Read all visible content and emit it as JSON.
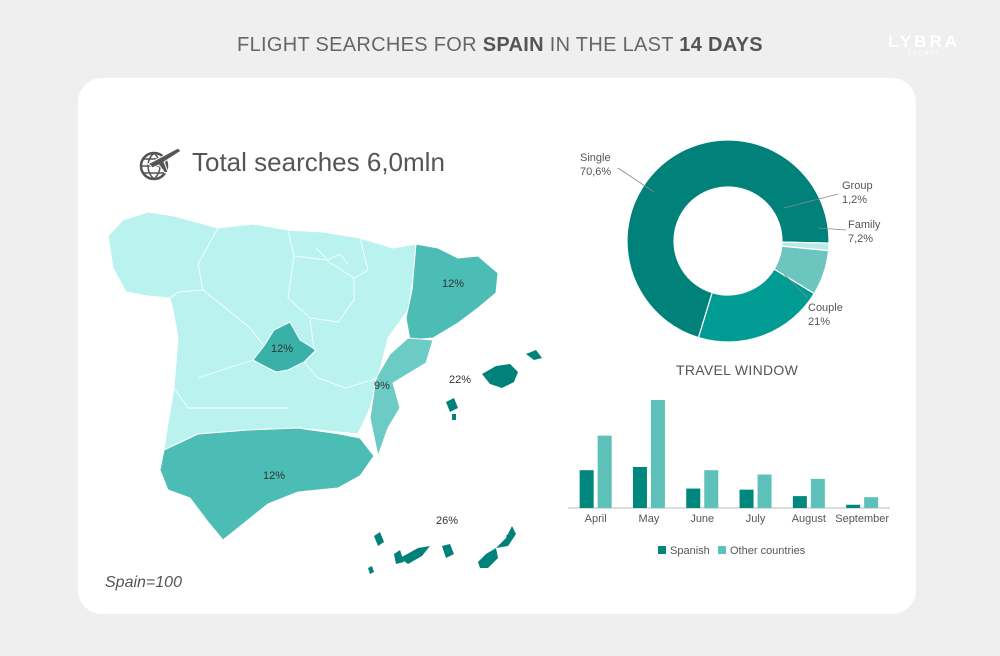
{
  "title": {
    "prefix": "FLIGHT SEARCHES FOR ",
    "country": "SPAIN",
    "middle": " IN THE LAST ",
    "period": "14 DAYS"
  },
  "logo": {
    "name": "LYBRA",
    "sub": "TECHTT"
  },
  "total": {
    "label": "Total searches 6,0mln"
  },
  "footnote": "Spain=100",
  "map": {
    "region_labels": [
      {
        "name": "catalonia",
        "value": "12%"
      },
      {
        "name": "madrid",
        "value": "12%"
      },
      {
        "name": "valencia",
        "value": "9%"
      },
      {
        "name": "balearic",
        "value": "22%"
      },
      {
        "name": "andalusia",
        "value": "12%"
      },
      {
        "name": "canary",
        "value": "26%"
      }
    ]
  },
  "colors": {
    "dark": "#00827a",
    "medium": "#4bbdb5",
    "light": "#b9f2ee",
    "bar_dark": "#00877d",
    "bar_light": "#5ec1b9"
  },
  "chart_data": [
    {
      "type": "pie",
      "title": "",
      "slices": [
        {
          "label": "Single",
          "value": 70.6,
          "display": "70,6%"
        },
        {
          "label": "Group",
          "value": 1.2,
          "display": "1,2%"
        },
        {
          "label": "Family",
          "value": 7.2,
          "display": "7,2%"
        },
        {
          "label": "Couple",
          "value": 21,
          "display": "21%"
        }
      ],
      "slice_colors": [
        "#00827a",
        "#b8ebe7",
        "#6cc6bf",
        "#009c93"
      ],
      "donut": true
    },
    {
      "type": "bar",
      "title": "TRAVEL WINDOW",
      "categories": [
        "April",
        "May",
        "June",
        "July",
        "August",
        "September"
      ],
      "series": [
        {
          "name": "Spanish",
          "values": [
            35,
            38,
            18,
            17,
            11,
            3
          ]
        },
        {
          "name": "Other countries",
          "values": [
            67,
            100,
            35,
            31,
            27,
            10
          ]
        }
      ],
      "ylim": [
        0,
        100
      ],
      "legend": "bottom"
    }
  ]
}
